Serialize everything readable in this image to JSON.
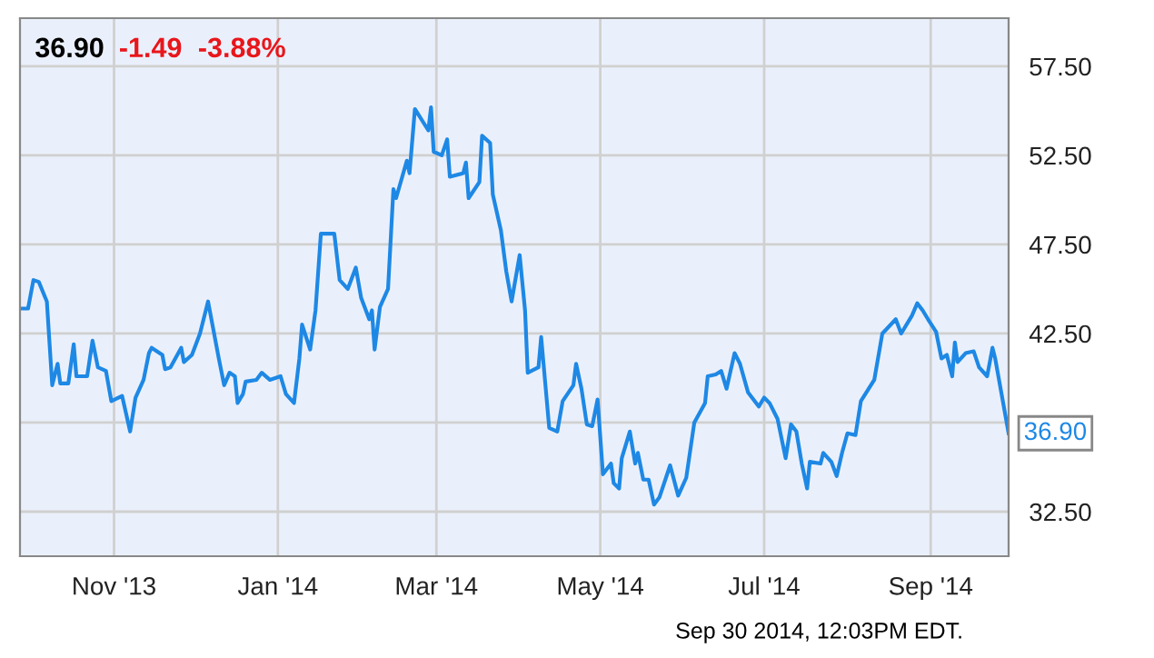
{
  "chart_data": {
    "type": "line",
    "title": "36.90",
    "annotations": [
      "-1.49",
      "-3.88%",
      "Sep 30 2014, 12:03PM EDT.",
      {
        "text": "36.90",
        "x": "2014-09-30",
        "y": 36.9
      }
    ],
    "x": [
      "2013-09-28",
      "2013-09-30",
      "2013-10-02",
      "2013-10-04",
      "2013-10-07",
      "2013-10-09",
      "2013-10-11",
      "2013-10-12",
      "2013-10-15",
      "2013-10-17",
      "2013-10-18",
      "2013-10-22",
      "2013-10-24",
      "2013-10-26",
      "2013-10-29",
      "2013-10-31",
      "2013-11-04",
      "2013-11-07",
      "2013-11-09",
      "2013-11-12",
      "2013-11-14",
      "2013-11-15",
      "2013-11-19",
      "2013-11-20",
      "2013-11-22",
      "2013-11-26",
      "2013-11-27",
      "2013-11-30",
      "2013-12-03",
      "2013-12-06",
      "2013-12-10",
      "2013-12-12",
      "2013-12-14",
      "2013-12-16",
      "2013-12-17",
      "2013-12-19",
      "2013-12-20",
      "2013-12-24",
      "2013-12-26",
      "2013-12-29",
      "2014-01-02",
      "2014-01-04",
      "2014-01-07",
      "2014-01-09",
      "2014-01-10",
      "2014-01-13",
      "2014-01-15",
      "2014-01-17",
      "2014-01-22",
      "2014-01-24",
      "2014-01-27",
      "2014-01-30",
      "2014-02-01",
      "2014-02-04",
      "2014-02-05",
      "2014-02-06",
      "2014-02-08",
      "2014-02-11",
      "2014-02-13",
      "2014-02-14",
      "2014-02-18",
      "2014-02-19",
      "2014-02-21",
      "2014-02-26",
      "2014-02-27",
      "2014-02-28",
      "2014-03-03",
      "2014-03-05",
      "2014-03-06",
      "2014-03-11",
      "2014-03-12",
      "2014-03-13",
      "2014-03-17",
      "2014-03-18",
      "2014-03-21",
      "2014-03-22",
      "2014-03-25",
      "2014-03-27",
      "2014-03-29",
      "2014-04-01",
      "2014-04-03",
      "2014-04-04",
      "2014-04-08",
      "2014-04-09",
      "2014-04-12",
      "2014-04-15",
      "2014-04-17",
      "2014-04-21",
      "2014-04-22",
      "2014-04-24",
      "2014-04-26",
      "2014-04-28",
      "2014-04-30",
      "2014-05-02",
      "2014-05-05",
      "2014-05-06",
      "2014-05-08",
      "2014-05-09",
      "2014-05-12",
      "2014-05-14",
      "2014-05-15",
      "2014-05-17",
      "2014-05-19",
      "2014-05-21",
      "2014-05-23",
      "2014-05-27",
      "2014-05-30",
      "2014-06-02",
      "2014-06-05",
      "2014-06-09",
      "2014-06-10",
      "2014-06-13",
      "2014-06-15",
      "2014-06-17",
      "2014-06-20",
      "2014-06-22",
      "2014-06-25",
      "2014-06-29",
      "2014-07-01",
      "2014-07-03",
      "2014-07-06",
      "2014-07-09",
      "2014-07-11",
      "2014-07-13",
      "2014-07-15",
      "2014-07-17",
      "2014-07-18",
      "2014-07-22",
      "2014-07-23",
      "2014-07-26",
      "2014-07-28",
      "2014-07-30",
      "2014-08-01",
      "2014-08-04",
      "2014-08-06",
      "2014-08-11",
      "2014-08-14",
      "2014-08-19",
      "2014-08-21",
      "2014-08-25",
      "2014-08-27",
      "2014-08-29",
      "2014-08-31",
      "2014-09-03",
      "2014-09-05",
      "2014-09-07",
      "2014-09-09",
      "2014-09-10",
      "2014-09-11",
      "2014-09-14",
      "2014-09-17",
      "2014-09-19",
      "2014-09-22",
      "2014-09-24",
      "2014-09-25",
      "2014-09-30"
    ],
    "series": [
      {
        "color": "#1e88e5",
        "values": [
          43.9,
          43.9,
          45.5,
          45.4,
          44.3,
          39.6,
          40.8,
          39.7,
          39.7,
          41.9,
          40.1,
          40.1,
          42.1,
          40.6,
          40.4,
          38.7,
          39.0,
          37.0,
          38.9,
          39.9,
          41.4,
          41.7,
          41.3,
          40.5,
          40.6,
          41.7,
          40.9,
          41.3,
          42.5,
          44.3,
          41.1,
          39.6,
          40.3,
          40.1,
          38.6,
          39.1,
          39.8,
          39.9,
          40.3,
          39.9,
          40.1,
          39.1,
          38.6,
          41.1,
          43.0,
          41.6,
          43.8,
          48.1,
          48.1,
          45.5,
          45.0,
          46.2,
          44.5,
          43.3,
          43.8,
          41.6,
          44.0,
          45.0,
          50.6,
          50.1,
          52.2,
          51.5,
          55.1,
          53.9,
          55.2,
          52.7,
          52.5,
          53.4,
          51.3,
          51.5,
          52.1,
          50.1,
          51.0,
          53.6,
          53.2,
          50.3,
          48.3,
          46.0,
          44.3,
          46.9,
          43.8,
          40.3,
          40.6,
          42.3,
          37.2,
          37.0,
          38.7,
          39.6,
          40.8,
          39.4,
          37.4,
          37.3,
          38.8,
          34.6,
          35.2,
          34.1,
          33.8,
          35.5,
          37.0,
          35.2,
          35.8,
          34.3,
          34.3,
          32.9,
          33.3,
          35.1,
          33.4,
          34.4,
          37.5,
          38.6,
          40.1,
          40.2,
          40.4,
          39.4,
          41.4,
          40.8,
          39.2,
          38.4,
          38.9,
          38.6,
          37.7,
          35.5,
          37.4,
          37.0,
          35.2,
          33.8,
          35.3,
          35.2,
          35.8,
          35.3,
          34.5,
          35.8,
          36.9,
          36.8,
          38.7,
          39.9,
          42.5,
          43.3,
          42.5,
          43.5,
          44.2,
          43.8,
          43.3,
          42.6,
          41.1,
          41.3,
          40.1,
          42.0,
          40.9,
          41.4,
          41.5,
          40.6,
          40.1,
          41.7,
          41.1,
          36.9
        ]
      }
    ],
    "xlim": [
      "2013-09-27",
      "2014-09-30"
    ],
    "xticks": [
      {
        "value": "2013-11-01",
        "label": "Nov '13"
      },
      {
        "value": "2014-01-01",
        "label": "Jan '14"
      },
      {
        "value": "2014-03-01",
        "label": "Mar '14"
      },
      {
        "value": "2014-05-01",
        "label": "May '14"
      },
      {
        "value": "2014-07-01",
        "label": "Jul '14"
      },
      {
        "value": "2014-09-01",
        "label": "Sep '14"
      }
    ],
    "ylim": [
      30,
      60.2
    ],
    "yticks": [
      {
        "value": 32.5,
        "label": "32.50"
      },
      {
        "value": 37.5,
        "label": null
      },
      {
        "value": 42.5,
        "label": "42.50"
      },
      {
        "value": 47.5,
        "label": "47.50"
      },
      {
        "value": 52.5,
        "label": "52.50"
      },
      {
        "value": 57.5,
        "label": "57.50"
      }
    ],
    "grid": true,
    "marker": "none",
    "line_style": "solid",
    "legend": false
  }
}
